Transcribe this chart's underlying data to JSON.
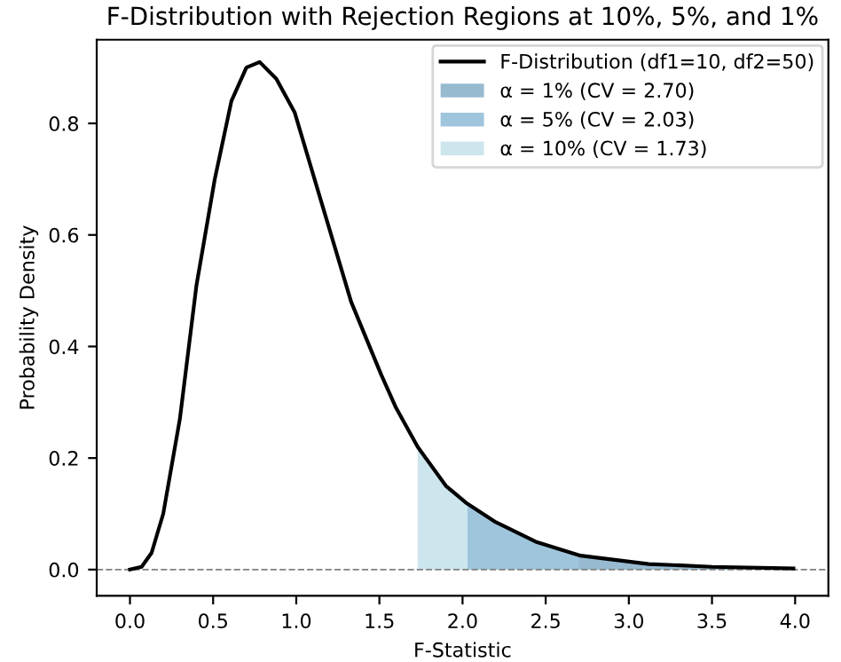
{
  "chart_data": {
    "type": "line",
    "title": "F-Distribution with Rejection Regions at 10%, 5%, and 1%",
    "xlabel": "F-Statistic",
    "ylabel": "Probability Density",
    "series": [
      {
        "name": "F-Distribution (df1=10, df2=50)",
        "color": "#000000",
        "x": [
          0,
          0.07,
          0.13,
          0.2,
          0.3,
          0.4,
          0.51,
          0.61,
          0.7,
          0.78,
          0.88,
          0.99,
          1.16,
          1.33,
          1.51,
          1.6,
          1.73,
          1.9,
          2.02,
          2.2,
          2.44,
          2.71,
          3.12,
          3.5,
          3.99
        ],
        "values": [
          0,
          0.005,
          0.03,
          0.1,
          0.27,
          0.51,
          0.7,
          0.84,
          0.9,
          0.91,
          0.88,
          0.82,
          0.65,
          0.48,
          0.35,
          0.29,
          0.22,
          0.15,
          0.12,
          0.085,
          0.05,
          0.025,
          0.01,
          0.005,
          0.002
        ]
      },
      {
        "name": "α = 1% (CV = 2.70)",
        "type": "area",
        "color": "#98bad0",
        "x": [
          2.7,
          3.12,
          3.5,
          3.99
        ],
        "values": [
          0.025,
          0.01,
          0.005,
          0.002
        ]
      },
      {
        "name": "α = 5% (CV = 2.03)",
        "type": "area",
        "color": "#9fc5dc",
        "x": [
          2.03,
          2.2,
          2.44,
          2.71,
          3.12,
          3.5,
          3.99
        ],
        "values": [
          0.12,
          0.085,
          0.05,
          0.025,
          0.01,
          0.005,
          0.002
        ]
      },
      {
        "name": "α = 10% (CV = 1.73)",
        "type": "area",
        "color": "#cde6ee",
        "x": [
          1.73,
          1.9,
          2.02,
          2.2,
          2.44,
          2.71,
          3.12,
          3.5,
          3.99
        ],
        "values": [
          0.22,
          0.15,
          0.12,
          0.085,
          0.05,
          0.025,
          0.01,
          0.005,
          0.002
        ]
      }
    ],
    "ref_lines": [
      {
        "axis": "y",
        "value": 0,
        "label": null,
        "color": "#808080",
        "line_style": "dashed"
      }
    ],
    "xlim": [
      -0.2,
      4.2
    ],
    "ylim": [
      -0.047,
      0.95
    ],
    "xticks": [
      {
        "value": 0,
        "label": "0.0"
      },
      {
        "value": 0.5,
        "label": "0.5"
      },
      {
        "value": 1,
        "label": "1.0"
      },
      {
        "value": 1.5,
        "label": "1.5"
      },
      {
        "value": 2,
        "label": "2.0"
      },
      {
        "value": 2.5,
        "label": "2.5"
      },
      {
        "value": 3,
        "label": "3.0"
      },
      {
        "value": 3.5,
        "label": "3.5"
      },
      {
        "value": 4,
        "label": "4.0"
      }
    ],
    "yticks": [
      {
        "value": 0,
        "label": "0.0"
      },
      {
        "value": 0.2,
        "label": "0.2"
      },
      {
        "value": 0.4,
        "label": "0.4"
      },
      {
        "value": 0.6,
        "label": "0.6"
      },
      {
        "value": 0.8,
        "label": "0.8"
      }
    ],
    "grid": false,
    "legend": "top right"
  }
}
